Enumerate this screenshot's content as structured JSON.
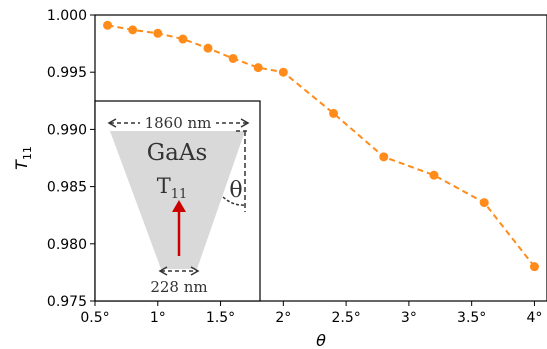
{
  "chart_data": {
    "type": "line",
    "title": "",
    "xlabel": "θ",
    "ylabel": "T",
    "ylabel_subscript": "11",
    "xlim": [
      0.5,
      4.1
    ],
    "ylim": [
      0.975,
      1.0
    ],
    "x_ticks": [
      0.5,
      1.0,
      1.5,
      2.0,
      2.5,
      3.0,
      3.5,
      4.0
    ],
    "x_tick_labels": [
      "0.5°",
      "1°",
      "1.5°",
      "2°",
      "2.5°",
      "3°",
      "3.5°",
      "4°"
    ],
    "y_ticks": [
      0.975,
      0.98,
      0.985,
      0.99,
      0.995,
      1.0
    ],
    "y_tick_labels": [
      "0.975",
      "0.980",
      "0.985",
      "0.990",
      "0.995",
      "1.000"
    ],
    "series": [
      {
        "color": "#ff8c1a",
        "line_style": "dashed",
        "marker": "circle",
        "x": [
          0.6,
          0.8,
          1.0,
          1.2,
          1.4,
          1.6,
          1.8,
          2.0,
          2.4,
          2.8,
          3.2,
          3.6,
          4.0
        ],
        "y": [
          0.9991,
          0.9987,
          0.9984,
          0.9979,
          0.9971,
          0.9962,
          0.9954,
          0.995,
          0.9914,
          0.9876,
          0.986,
          0.9836,
          0.978
        ]
      }
    ],
    "inset": {
      "material": "GaAs",
      "top_width": "1860 nm",
      "bottom_width": "228 nm",
      "angle_symbol": "θ",
      "mode_label": "T",
      "mode_subscript": "11",
      "arrow_color": "#cc0000",
      "shape_color": "#d9d9d9"
    }
  }
}
